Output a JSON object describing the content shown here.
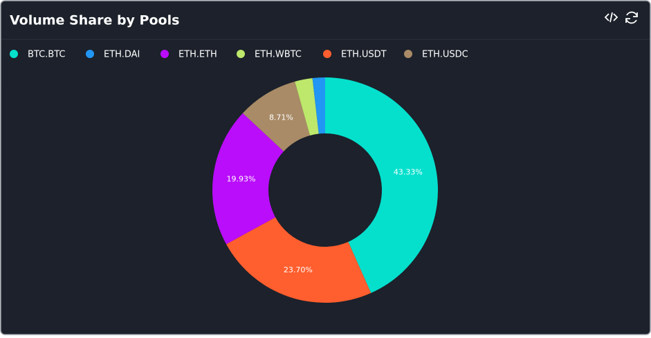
{
  "chart_data": {
    "type": "donut",
    "title": "Volume Share by Pools",
    "legend": [
      "BTC.BTC",
      "ETH.DAI",
      "ETH.ETH",
      "ETH.WBTC",
      "ETH.USDT",
      "ETH.USDC"
    ],
    "categories": [
      "BTC.BTC",
      "ETH.USDT",
      "ETH.ETH",
      "ETH.USDC",
      "ETH.WBTC",
      "ETH.DAI"
    ],
    "values": [
      43.33,
      23.7,
      19.93,
      8.71,
      2.53,
      1.8
    ],
    "value_labels": [
      "43.33%",
      "23.70%",
      "19.93%",
      "8.71%",
      null,
      null
    ],
    "colors": [
      "#05e0cd",
      "#ff5e2e",
      "#ba0dfc",
      "#a98b67",
      "#bde86b",
      "#2196f3"
    ]
  }
}
